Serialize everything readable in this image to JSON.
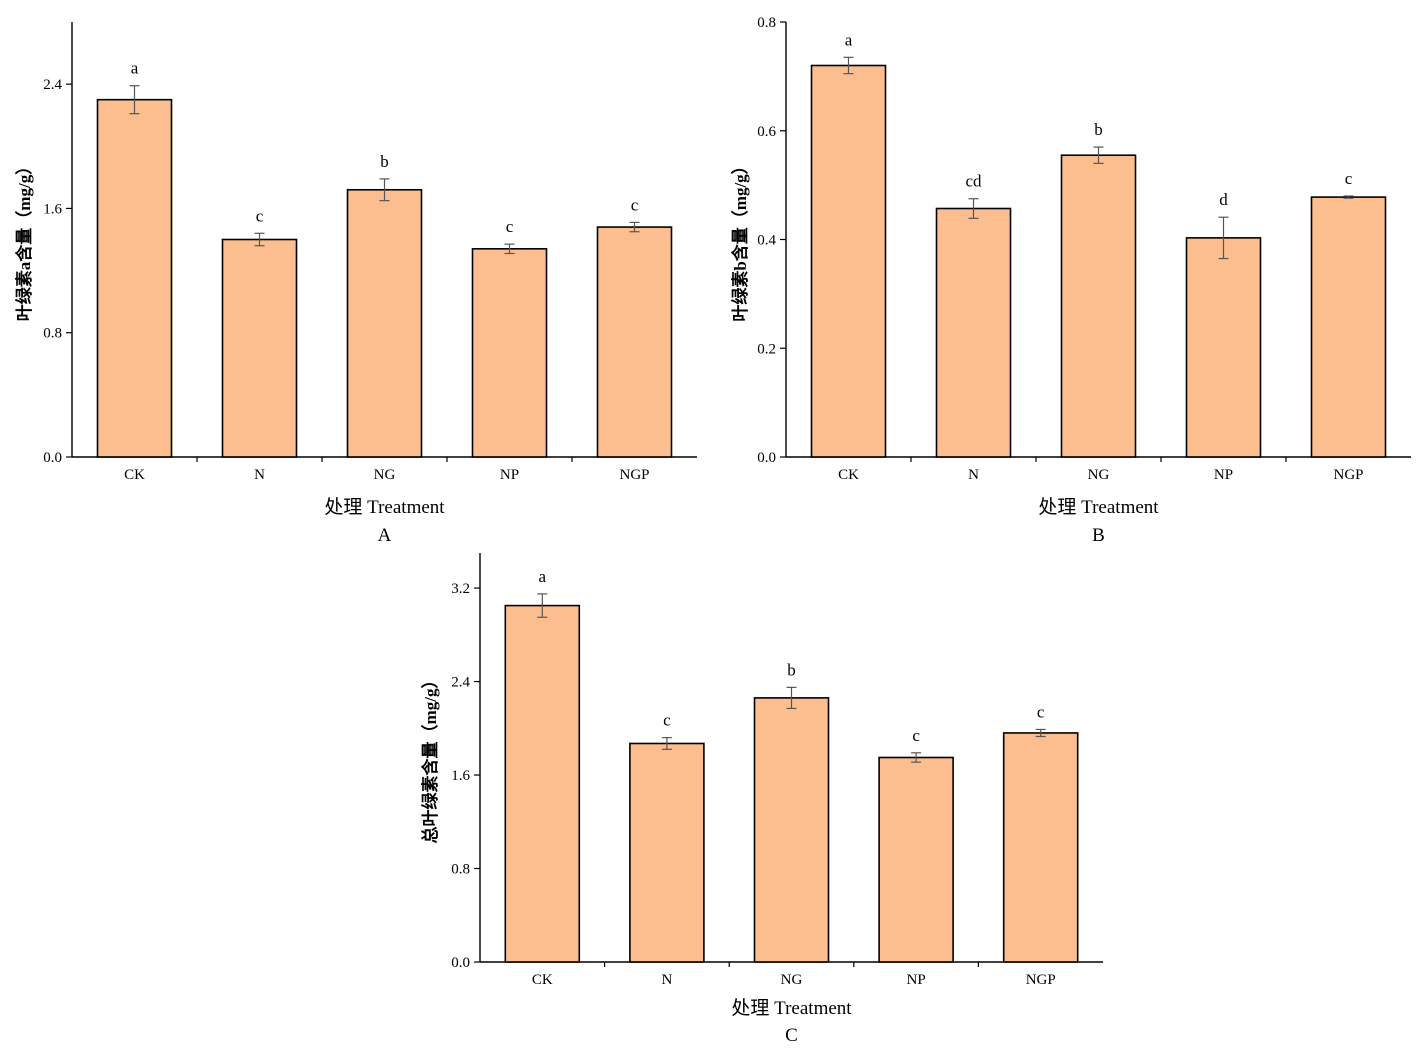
{
  "chart_data": [
    {
      "type": "bar",
      "categories": [
        "CK",
        "N",
        "NG",
        "NP",
        "NGP"
      ],
      "values": [
        2.3,
        1.4,
        1.72,
        1.34,
        1.48
      ],
      "errors": [
        0.09,
        0.04,
        0.07,
        0.03,
        0.03
      ],
      "significance": [
        "a",
        "c",
        "b",
        "c",
        "c"
      ],
      "ylabel": "叶绿素a含量（mg/g）",
      "xlabel": "处理 Treatment",
      "panel_label": "A",
      "ylim": [
        0,
        2.8
      ],
      "yticks": [
        "0.0",
        "0.8",
        "1.6",
        "2.4"
      ],
      "ytick_values": [
        0,
        0.8,
        1.6,
        2.4
      ],
      "grid": false,
      "bar_color": "#FCBE8E"
    },
    {
      "type": "bar",
      "categories": [
        "CK",
        "N",
        "NG",
        "NP",
        "NGP"
      ],
      "values": [
        0.72,
        0.457,
        0.555,
        0.403,
        0.478
      ],
      "errors": [
        0.015,
        0.018,
        0.015,
        0.038,
        0.002
      ],
      "significance": [
        "a",
        "cd",
        "b",
        "d",
        "c"
      ],
      "ylabel": "叶绿素b含量（mg/g）",
      "xlabel": "处理 Treatment",
      "panel_label": "B",
      "ylim": [
        0,
        0.8
      ],
      "yticks": [
        "0.0",
        "0.2",
        "0.4",
        "0.6",
        "0.8"
      ],
      "ytick_values": [
        0,
        0.2,
        0.4,
        0.6,
        0.8
      ],
      "grid": false,
      "bar_color": "#FCBE8E"
    },
    {
      "type": "bar",
      "categories": [
        "CK",
        "N",
        "NG",
        "NP",
        "NGP"
      ],
      "values": [
        3.05,
        1.87,
        2.26,
        1.75,
        1.96
      ],
      "errors": [
        0.1,
        0.05,
        0.09,
        0.04,
        0.03
      ],
      "significance": [
        "a",
        "c",
        "b",
        "c",
        "c"
      ],
      "ylabel": "总叶绿素含量（mg/g）",
      "xlabel": "处理 Treatment",
      "panel_label": "C",
      "ylim": [
        0,
        3.5
      ],
      "yticks": [
        "0.0",
        "0.8",
        "1.6",
        "2.4",
        "3.2"
      ],
      "ytick_values": [
        0,
        0.8,
        1.6,
        2.4,
        3.2
      ],
      "grid": false,
      "bar_color": "#FCBE8E"
    }
  ]
}
